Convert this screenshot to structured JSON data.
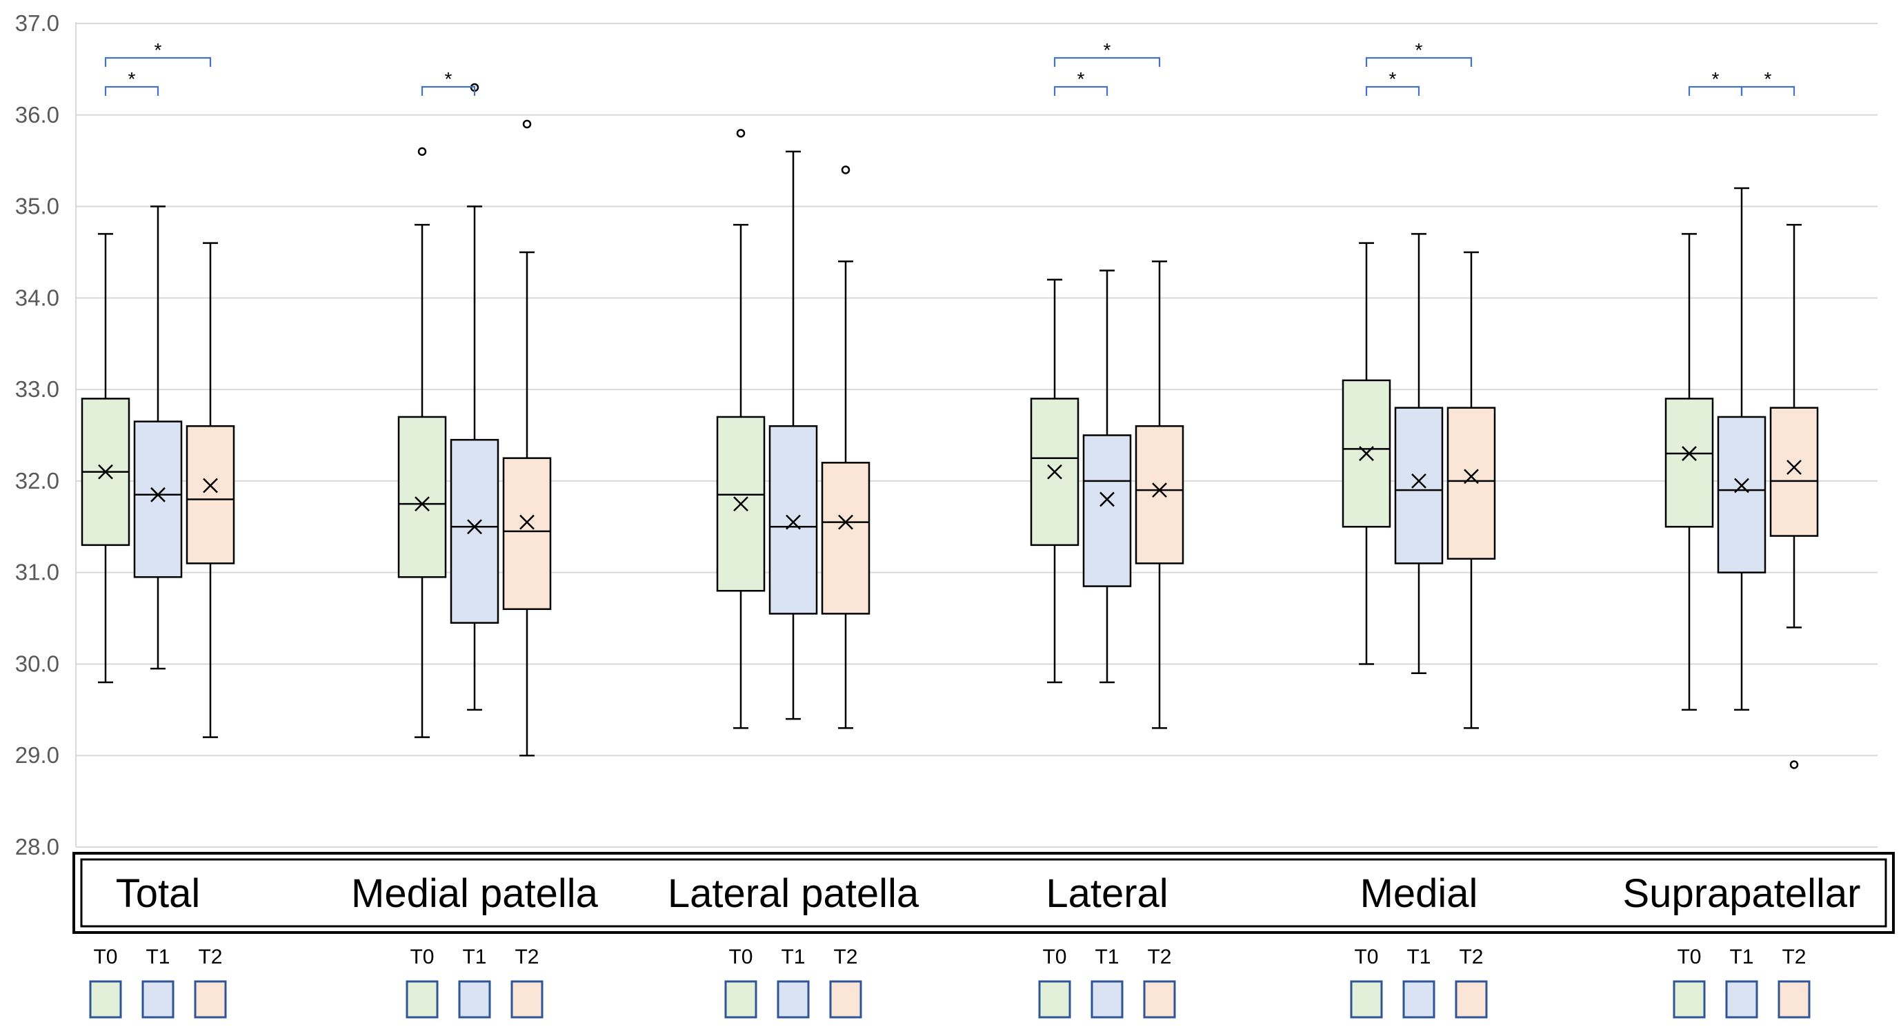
{
  "chart_data": {
    "type": "boxplot",
    "title": "",
    "xlabel": "",
    "ylabel": "",
    "ylim": [
      28.0,
      37.0
    ],
    "yticks": [
      "37.0",
      "36.0",
      "35.0",
      "34.0",
      "33.0",
      "32.0",
      "31.0",
      "30.0",
      "29.0",
      "28.0"
    ],
    "grid": true,
    "series_names": [
      "T0",
      "T1",
      "T2"
    ],
    "colors": {
      "T0": "#e2efd9",
      "T1": "#dae3f3",
      "T2": "#fbe5d6",
      "bracket": "#4472c4",
      "axis": "#d9d9d9",
      "legend_border": "#2f5597"
    },
    "groups": [
      {
        "label": "Total",
        "boxes": [
          {
            "series": "T0",
            "min": 29.8,
            "q1": 31.3,
            "median": 32.1,
            "q3": 32.9,
            "max": 34.7,
            "mean": 32.1,
            "outliers": []
          },
          {
            "series": "T1",
            "min": 29.95,
            "q1": 30.95,
            "median": 31.85,
            "q3": 32.65,
            "max": 35.0,
            "mean": 31.85,
            "outliers": []
          },
          {
            "series": "T2",
            "min": 29.2,
            "q1": 31.1,
            "median": 31.8,
            "q3": 32.6,
            "max": 34.6,
            "mean": 31.95,
            "outliers": []
          }
        ],
        "significance": [
          {
            "from": "T0",
            "to": "T1",
            "label": "*"
          },
          {
            "from": "T0",
            "to": "T2",
            "label": "*"
          }
        ]
      },
      {
        "label": "Medial patella",
        "boxes": [
          {
            "series": "T0",
            "min": 29.2,
            "q1": 30.95,
            "median": 31.75,
            "q3": 32.7,
            "max": 34.8,
            "mean": 31.75,
            "outliers": [
              35.6
            ]
          },
          {
            "series": "T1",
            "min": 29.5,
            "q1": 30.45,
            "median": 31.5,
            "q3": 32.45,
            "max": 35.0,
            "mean": 31.5,
            "outliers": [
              36.3
            ]
          },
          {
            "series": "T2",
            "min": 29.0,
            "q1": 30.6,
            "median": 31.45,
            "q3": 32.25,
            "max": 34.5,
            "mean": 31.55,
            "outliers": [
              35.9
            ]
          }
        ],
        "significance": [
          {
            "from": "T0",
            "to": "T1",
            "label": "*"
          }
        ]
      },
      {
        "label": "Lateral patella",
        "boxes": [
          {
            "series": "T0",
            "min": 29.3,
            "q1": 30.8,
            "median": 31.85,
            "q3": 32.7,
            "max": 34.8,
            "mean": 31.75,
            "outliers": [
              35.8
            ]
          },
          {
            "series": "T1",
            "min": 29.4,
            "q1": 30.55,
            "median": 31.5,
            "q3": 32.6,
            "max": 35.6,
            "mean": 31.55,
            "outliers": []
          },
          {
            "series": "T2",
            "min": 29.3,
            "q1": 30.55,
            "median": 31.55,
            "q3": 32.2,
            "max": 34.4,
            "mean": 31.55,
            "outliers": [
              35.4
            ]
          }
        ],
        "significance": []
      },
      {
        "label": "Lateral",
        "boxes": [
          {
            "series": "T0",
            "min": 29.8,
            "q1": 31.3,
            "median": 32.25,
            "q3": 32.9,
            "max": 34.2,
            "mean": 32.1,
            "outliers": []
          },
          {
            "series": "T1",
            "min": 29.8,
            "q1": 30.85,
            "median": 32.0,
            "q3": 32.5,
            "max": 34.3,
            "mean": 31.8,
            "outliers": []
          },
          {
            "series": "T2",
            "min": 29.3,
            "q1": 31.1,
            "median": 31.9,
            "q3": 32.6,
            "max": 34.4,
            "mean": 31.9,
            "outliers": []
          }
        ],
        "significance": [
          {
            "from": "T0",
            "to": "T1",
            "label": "*"
          },
          {
            "from": "T0",
            "to": "T2",
            "label": "*"
          }
        ]
      },
      {
        "label": "Medial",
        "boxes": [
          {
            "series": "T0",
            "min": 30.0,
            "q1": 31.5,
            "median": 32.35,
            "q3": 33.1,
            "max": 34.6,
            "mean": 32.3,
            "outliers": []
          },
          {
            "series": "T1",
            "min": 29.9,
            "q1": 31.1,
            "median": 31.9,
            "q3": 32.8,
            "max": 34.7,
            "mean": 32.0,
            "outliers": []
          },
          {
            "series": "T2",
            "min": 29.3,
            "q1": 31.15,
            "median": 32.0,
            "q3": 32.8,
            "max": 34.5,
            "mean": 32.05,
            "outliers": []
          }
        ],
        "significance": [
          {
            "from": "T0",
            "to": "T1",
            "label": "*"
          },
          {
            "from": "T0",
            "to": "T2",
            "label": "*"
          }
        ]
      },
      {
        "label": "Suprapatellar",
        "boxes": [
          {
            "series": "T0",
            "min": 29.5,
            "q1": 31.5,
            "median": 32.3,
            "q3": 32.9,
            "max": 34.7,
            "mean": 32.3,
            "outliers": []
          },
          {
            "series": "T1",
            "min": 29.5,
            "q1": 31.0,
            "median": 31.9,
            "q3": 32.7,
            "max": 35.2,
            "mean": 31.95,
            "outliers": []
          },
          {
            "series": "T2",
            "min": 30.4,
            "q1": 31.4,
            "median": 32.0,
            "q3": 32.8,
            "max": 34.8,
            "mean": 32.15,
            "outliers": [
              28.9
            ]
          }
        ],
        "significance": [
          {
            "from": "T0",
            "to": "T1",
            "label": "*"
          },
          {
            "from": "T1",
            "to": "T2",
            "label": "*"
          }
        ]
      }
    ]
  }
}
